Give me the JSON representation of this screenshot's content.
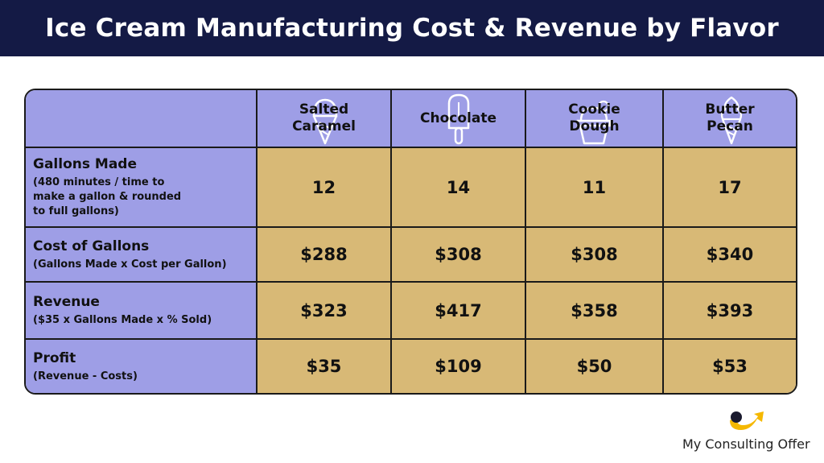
{
  "title": "Ice Cream Manufacturing Cost & Revenue by Flavor",
  "table": {
    "columns": [
      {
        "name": "Salted Caramel",
        "lines": [
          "Salted",
          "Caramel"
        ],
        "icon": "ice-cream-cone-icon"
      },
      {
        "name": "Chocolate",
        "lines": [
          "Chocolate"
        ],
        "icon": "popsicle-icon"
      },
      {
        "name": "Cookie Dough",
        "lines": [
          "Cookie",
          "Dough"
        ],
        "icon": "ice-cream-cup-icon"
      },
      {
        "name": "Butter Pecan",
        "lines": [
          "Butter",
          "Pecan"
        ],
        "icon": "soft-serve-cone-icon"
      }
    ],
    "rows": [
      {
        "label": "Gallons Made",
        "sub": [
          "(480 minutes / time to",
          "make a gallon & rounded",
          "to full gallons)"
        ],
        "values": [
          "12",
          "14",
          "11",
          "17"
        ]
      },
      {
        "label": "Cost of Gallons",
        "sub": [
          "(Gallons Made x Cost per Gallon)"
        ],
        "values": [
          "$288",
          "$308",
          "$308",
          "$340"
        ]
      },
      {
        "label": "Revenue",
        "sub": [
          "($35 x Gallons Made x % Sold)"
        ],
        "values": [
          "$323",
          "$417",
          "$358",
          "$393"
        ]
      },
      {
        "label": "Profit",
        "sub": [
          "(Revenue - Costs)"
        ],
        "values": [
          "$35",
          "$109",
          "$50",
          "$53"
        ]
      }
    ]
  },
  "footer": {
    "brand": "My Consulting Offer",
    "logo_icon": "arrow-swoosh-logo-icon",
    "logo_color": "#f5b800"
  },
  "colors": {
    "title_bg": "#141a45",
    "header_bg": "#9e9ee6",
    "value_bg": "#d8b976"
  }
}
